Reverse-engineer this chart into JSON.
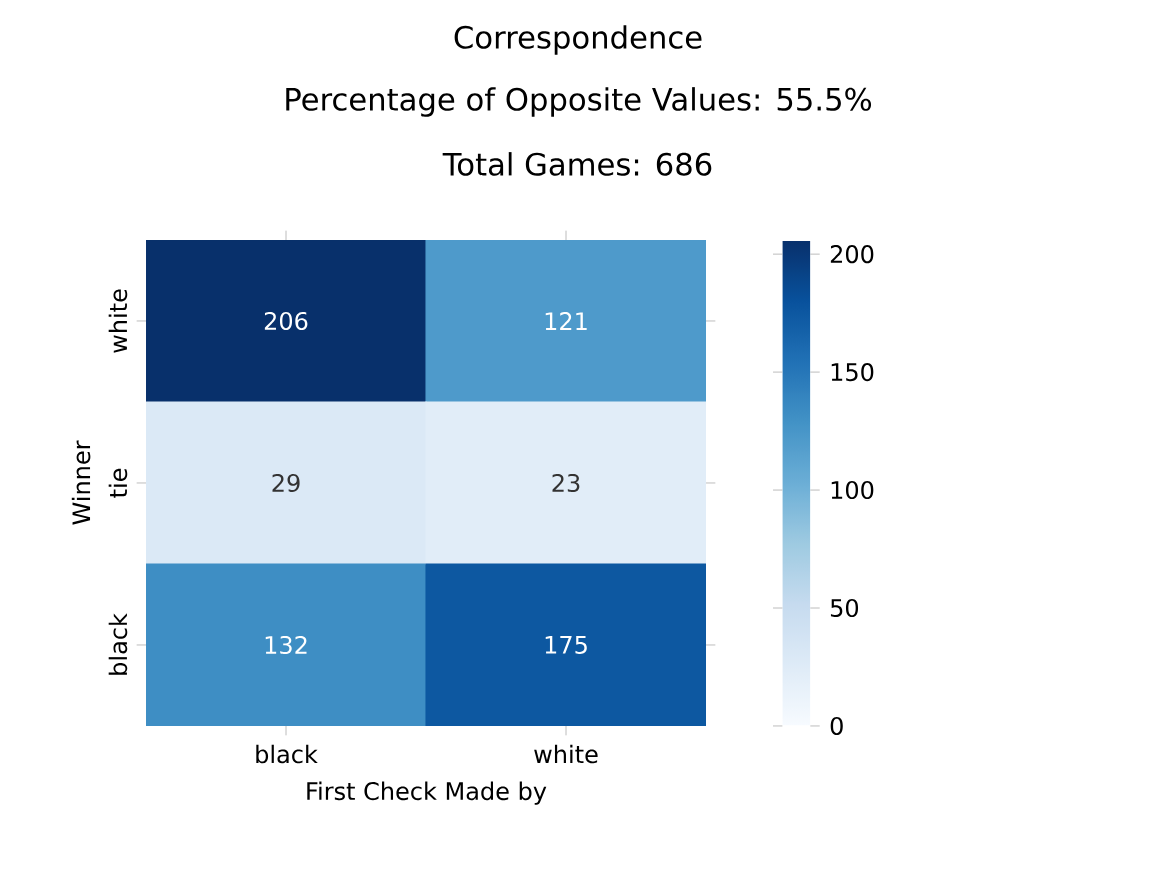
{
  "chart_data": {
    "type": "heatmap",
    "title": "Correspondence",
    "subtitle": "Percentage of Opposite Values: 55.5%",
    "annotations": [
      "Total Games: 686"
    ],
    "xlabel": "First Check Made by",
    "ylabel": "Winner",
    "categories": [
      "black",
      "white"
    ],
    "y_categories": [
      "white",
      "tie",
      "black"
    ],
    "cells": [
      [
        206,
        121
      ],
      [
        29,
        23
      ],
      [
        132,
        175
      ]
    ],
    "data_labels": true,
    "clim": [
      0,
      206
    ],
    "cticks": [
      0,
      50,
      100,
      150,
      200
    ]
  }
}
